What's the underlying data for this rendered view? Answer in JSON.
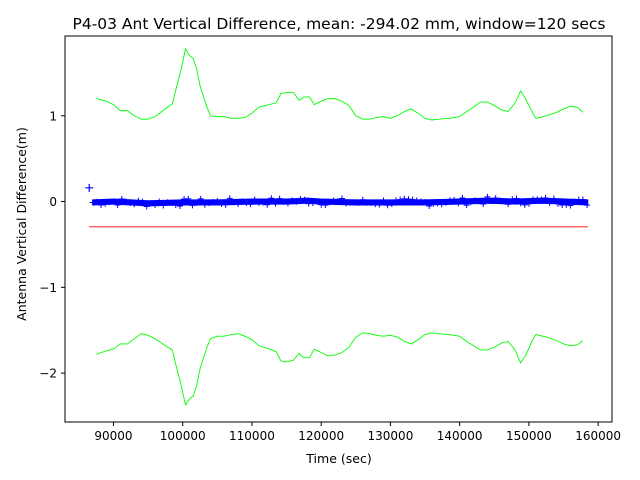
{
  "chart_data": {
    "type": "line",
    "title": "P4-03 Ant Vertical Difference, mean: -294.02 mm, window=120 secs",
    "xlabel": "Time (sec)",
    "ylabel": "Antenna Vertical Difference(m)",
    "xlim": [
      83000,
      162000
    ],
    "ylim": [
      -2.57,
      1.93
    ],
    "x_ticks": [
      90000,
      100000,
      110000,
      120000,
      130000,
      140000,
      150000,
      160000
    ],
    "x_tick_labels": [
      "90000",
      "100000",
      "110000",
      "120000",
      "130000",
      "140000",
      "150000",
      "160000"
    ],
    "y_ticks": [
      -2,
      -1,
      0,
      1
    ],
    "y_tick_labels": [
      "−2",
      "−1",
      "0",
      "1"
    ],
    "grid": false,
    "colors": {
      "data": "#0000ff",
      "mean": "#ff0000",
      "band": "#00ff00"
    },
    "series": [
      {
        "style": "markers",
        "marker": "+",
        "color": "#0000ff",
        "points": [
          [
            86500,
            0.16
          ]
        ],
        "band_range": [
          87000,
          158500
        ],
        "band_center": [
          [
            87000,
            -0.01
          ],
          [
            90000,
            0.0
          ],
          [
            95000,
            -0.02
          ],
          [
            100000,
            -0.01
          ],
          [
            105000,
            -0.01
          ],
          [
            110000,
            0.0
          ],
          [
            115000,
            0.0
          ],
          [
            118000,
            0.01
          ],
          [
            120000,
            0.0
          ],
          [
            125000,
            -0.01
          ],
          [
            130000,
            -0.01
          ],
          [
            135000,
            -0.01
          ],
          [
            140000,
            0.0
          ],
          [
            144000,
            0.01
          ],
          [
            148000,
            0.0
          ],
          [
            152000,
            0.01
          ],
          [
            158500,
            -0.01
          ]
        ],
        "band_amplitude": 0.03
      },
      {
        "style": "line",
        "color": "#ff0000",
        "points": [
          [
            86500,
            -0.294
          ],
          [
            158500,
            -0.294
          ]
        ]
      },
      {
        "style": "line",
        "color": "#00ff00",
        "points": [
          [
            87500,
            1.2
          ],
          [
            89000,
            1.17
          ],
          [
            90000,
            1.13
          ],
          [
            91000,
            1.06
          ],
          [
            92000,
            1.06
          ],
          [
            93000,
            1.0
          ],
          [
            94000,
            0.96
          ],
          [
            95000,
            0.96
          ],
          [
            96000,
            0.99
          ],
          [
            97500,
            1.08
          ],
          [
            98500,
            1.14
          ],
          [
            99000,
            1.3
          ],
          [
            99800,
            1.55
          ],
          [
            100400,
            1.78
          ],
          [
            101000,
            1.7
          ],
          [
            101500,
            1.67
          ],
          [
            102000,
            1.55
          ],
          [
            102500,
            1.35
          ],
          [
            103500,
            1.1
          ],
          [
            104000,
            1.0
          ],
          [
            105000,
            0.99
          ],
          [
            106000,
            0.99
          ],
          [
            107000,
            0.97
          ],
          [
            108000,
            0.97
          ],
          [
            109000,
            0.98
          ],
          [
            110000,
            1.03
          ],
          [
            111000,
            1.1
          ],
          [
            112500,
            1.13
          ],
          [
            113500,
            1.15
          ],
          [
            114200,
            1.26
          ],
          [
            115000,
            1.27
          ],
          [
            116000,
            1.27
          ],
          [
            116800,
            1.18
          ],
          [
            117500,
            1.22
          ],
          [
            118300,
            1.22
          ],
          [
            119000,
            1.13
          ],
          [
            120000,
            1.17
          ],
          [
            121000,
            1.2
          ],
          [
            122000,
            1.2
          ],
          [
            123000,
            1.17
          ],
          [
            124000,
            1.12
          ],
          [
            125000,
            1.0
          ],
          [
            126000,
            0.96
          ],
          [
            127000,
            0.96
          ],
          [
            128000,
            0.98
          ],
          [
            129000,
            0.99
          ],
          [
            130000,
            0.97
          ],
          [
            131000,
            1.0
          ],
          [
            132000,
            1.05
          ],
          [
            133000,
            1.08
          ],
          [
            134000,
            1.03
          ],
          [
            135000,
            0.97
          ],
          [
            136000,
            0.95
          ],
          [
            137000,
            0.96
          ],
          [
            138500,
            0.97
          ],
          [
            140000,
            0.99
          ],
          [
            141000,
            1.05
          ],
          [
            142000,
            1.1
          ],
          [
            143000,
            1.16
          ],
          [
            144000,
            1.16
          ],
          [
            145000,
            1.12
          ],
          [
            146000,
            1.07
          ],
          [
            147000,
            1.05
          ],
          [
            148000,
            1.15
          ],
          [
            148800,
            1.29
          ],
          [
            149500,
            1.2
          ],
          [
            150500,
            1.04
          ],
          [
            151000,
            0.97
          ],
          [
            152500,
            1.0
          ],
          [
            154000,
            1.04
          ],
          [
            155000,
            1.08
          ],
          [
            156000,
            1.11
          ],
          [
            157000,
            1.1
          ],
          [
            157800,
            1.04
          ]
        ]
      },
      {
        "style": "line",
        "color": "#00ff00",
        "points": [
          [
            87500,
            -1.78
          ],
          [
            89000,
            -1.74
          ],
          [
            90000,
            -1.72
          ],
          [
            91000,
            -1.66
          ],
          [
            92000,
            -1.66
          ],
          [
            93000,
            -1.6
          ],
          [
            94000,
            -1.54
          ],
          [
            95000,
            -1.56
          ],
          [
            96000,
            -1.6
          ],
          [
            97500,
            -1.68
          ],
          [
            98500,
            -1.73
          ],
          [
            99000,
            -1.9
          ],
          [
            99800,
            -2.15
          ],
          [
            100400,
            -2.37
          ],
          [
            101000,
            -2.3
          ],
          [
            101500,
            -2.27
          ],
          [
            102000,
            -2.15
          ],
          [
            102500,
            -1.95
          ],
          [
            103500,
            -1.7
          ],
          [
            104000,
            -1.6
          ],
          [
            105000,
            -1.57
          ],
          [
            106000,
            -1.57
          ],
          [
            107000,
            -1.55
          ],
          [
            108000,
            -1.54
          ],
          [
            109000,
            -1.57
          ],
          [
            110000,
            -1.61
          ],
          [
            111000,
            -1.68
          ],
          [
            112500,
            -1.72
          ],
          [
            113500,
            -1.75
          ],
          [
            114200,
            -1.86
          ],
          [
            115000,
            -1.87
          ],
          [
            116000,
            -1.85
          ],
          [
            116800,
            -1.77
          ],
          [
            117500,
            -1.82
          ],
          [
            118300,
            -1.82
          ],
          [
            119000,
            -1.72
          ],
          [
            120000,
            -1.76
          ],
          [
            121000,
            -1.8
          ],
          [
            122000,
            -1.79
          ],
          [
            123000,
            -1.76
          ],
          [
            124000,
            -1.7
          ],
          [
            125000,
            -1.58
          ],
          [
            126000,
            -1.53
          ],
          [
            127000,
            -1.54
          ],
          [
            128000,
            -1.56
          ],
          [
            129000,
            -1.57
          ],
          [
            130000,
            -1.56
          ],
          [
            131000,
            -1.58
          ],
          [
            132000,
            -1.63
          ],
          [
            133000,
            -1.66
          ],
          [
            134000,
            -1.61
          ],
          [
            135000,
            -1.55
          ],
          [
            136000,
            -1.53
          ],
          [
            137000,
            -1.54
          ],
          [
            138500,
            -1.55
          ],
          [
            140000,
            -1.57
          ],
          [
            141000,
            -1.63
          ],
          [
            142000,
            -1.68
          ],
          [
            143000,
            -1.73
          ],
          [
            144000,
            -1.73
          ],
          [
            145000,
            -1.7
          ],
          [
            146000,
            -1.65
          ],
          [
            147000,
            -1.63
          ],
          [
            148000,
            -1.73
          ],
          [
            148800,
            -1.88
          ],
          [
            149500,
            -1.8
          ],
          [
            150500,
            -1.62
          ],
          [
            151000,
            -1.55
          ],
          [
            152500,
            -1.58
          ],
          [
            154000,
            -1.62
          ],
          [
            155000,
            -1.66
          ],
          [
            156000,
            -1.68
          ],
          [
            157000,
            -1.67
          ],
          [
            157800,
            -1.62
          ]
        ]
      }
    ]
  }
}
